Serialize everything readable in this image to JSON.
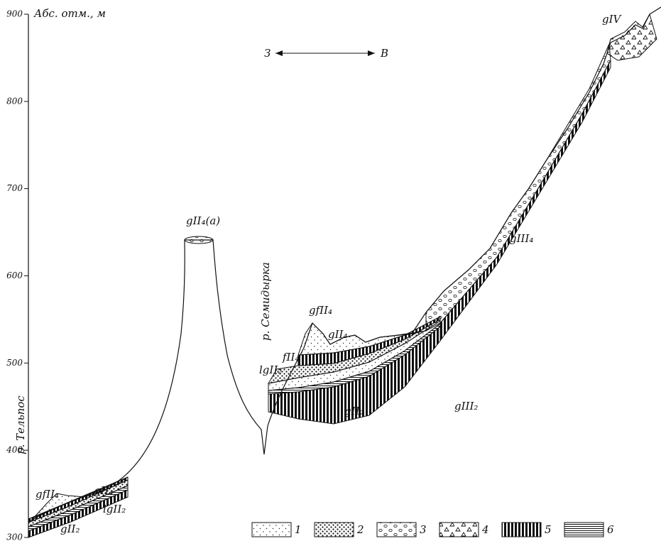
{
  "axis": {
    "label": "Абс. отм., м",
    "ticks": [
      "900",
      "800",
      "700",
      "600",
      "500",
      "400",
      "300"
    ]
  },
  "direction": {
    "west": "З",
    "east": "В"
  },
  "rivers": [
    "р. Тельпос",
    "р. Семидырка"
  ],
  "labels": [
    "gII₄(a)",
    "gfII₄",
    "gII₄",
    "fII₄",
    "lgII₂",
    "gII₂",
    "gIII₂",
    "gIII₄",
    "gIV",
    "gfII₄",
    "gII₄",
    "lgII₂",
    "gII₂"
  ],
  "legend": [
    "1",
    "2",
    "3",
    "4",
    "5",
    "6"
  ]
}
